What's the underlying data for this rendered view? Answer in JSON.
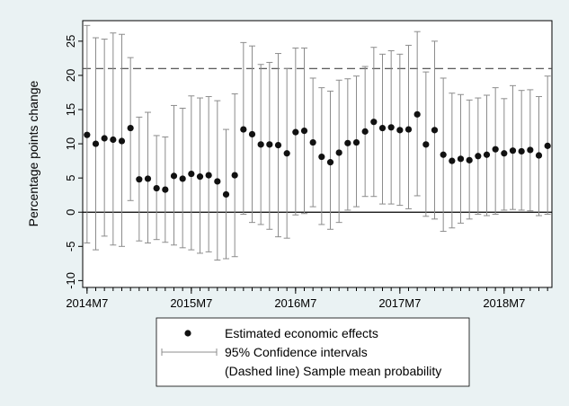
{
  "chart_data": {
    "type": "scatter",
    "title": "",
    "xlabel": "",
    "ylabel": "Percentage points change",
    "ylim": [
      -11,
      28
    ],
    "yticks": [
      -10,
      -5,
      0,
      5,
      10,
      15,
      20,
      25
    ],
    "xlim": [
      0.5,
      54.5
    ],
    "xtick_labels": [
      {
        "x": 1,
        "label": "2014M7"
      },
      {
        "x": 13,
        "label": "2015M7"
      },
      {
        "x": 25,
        "label": "2016M7"
      },
      {
        "x": 37,
        "label": "2017M7"
      },
      {
        "x": 49,
        "label": "2018M7"
      }
    ],
    "x_minor_ticks_every": 1,
    "zero_line": 0,
    "reference_line": {
      "y": 21,
      "style": "dashed",
      "label": "(Dashed line) Sample mean probability"
    },
    "grid": false,
    "colors": {
      "background": "#eaf2f3",
      "plot_area": "#ffffff",
      "points": "#111111",
      "ci": "#8c8c8c",
      "dashed": "#444444"
    },
    "series": [
      {
        "name": "Estimated economic effects",
        "x": [
          1,
          2,
          3,
          4,
          5,
          6,
          7,
          8,
          9,
          10,
          11,
          12,
          13,
          14,
          15,
          16,
          17,
          18,
          19,
          20,
          21,
          22,
          23,
          24,
          25,
          26,
          27,
          28,
          29,
          30,
          31,
          32,
          33,
          34,
          35,
          36,
          37,
          38,
          39,
          40,
          41,
          42,
          43,
          44,
          45,
          46,
          47,
          48,
          49,
          50,
          51,
          52,
          53,
          54
        ],
        "y": [
          11.3,
          10,
          10.8,
          10.6,
          10.4,
          12.3,
          4.8,
          4.9,
          3.5,
          3.3,
          5.3,
          4.9,
          5.6,
          5.2,
          5.4,
          4.5,
          2.6,
          5.4,
          12.1,
          11.4,
          9.9,
          9.9,
          9.8,
          8.6,
          11.7,
          11.9,
          10.2,
          8.1,
          7.3,
          8.7,
          10.1,
          10.2,
          11.8,
          13.2,
          12.3,
          12.4,
          12,
          12.1,
          14.3,
          9.9,
          12,
          8.4,
          7.5,
          7.8,
          7.6,
          8.2,
          8.4,
          9.2,
          8.6,
          9,
          8.9,
          9.1,
          8.3,
          9.7
        ]
      },
      {
        "name": "95% Confidence intervals",
        "lower": [
          -4.5,
          -5.5,
          -3.5,
          -4.8,
          -5,
          1.7,
          -4.2,
          -4.5,
          -4,
          -4.4,
          -4.8,
          -5.2,
          -5.5,
          -6,
          -5.8,
          -7,
          -6.8,
          -6.5,
          -0.3,
          -1.5,
          -1.8,
          -2.5,
          -3.6,
          -3.8,
          -0.4,
          -0.2,
          0.8,
          -1.8,
          -2.5,
          -1.5,
          0.3,
          0.8,
          2.3,
          2.3,
          1.2,
          1.2,
          1,
          0.5,
          2.4,
          -0.6,
          -1,
          -2.8,
          -2.3,
          -1.6,
          -1,
          -0.3,
          -0.5,
          -0.3,
          0.3,
          0.4,
          0.3,
          0.2,
          -0.5,
          -0.3
        ],
        "upper": [
          27.3,
          25.5,
          25.3,
          26.2,
          26,
          22.6,
          13.9,
          14.6,
          11.2,
          11,
          15.6,
          15.2,
          17,
          16.7,
          16.9,
          16.3,
          12.1,
          17.3,
          24.8,
          24.3,
          21.6,
          21.9,
          23.2,
          21,
          24,
          24,
          19.6,
          18.2,
          17.7,
          19.3,
          19.5,
          19.9,
          21.3,
          24.1,
          23.1,
          23.6,
          23.1,
          24.4,
          26.4,
          20.5,
          25,
          19.6,
          17.4,
          17.2,
          16.4,
          16.7,
          17.1,
          18.2,
          16.6,
          18.5,
          17.8,
          17.9,
          16.9,
          19.9
        ]
      }
    ],
    "legend": {
      "placement": "bottom",
      "entries": [
        "Estimated economic effects",
        "95% Confidence intervals",
        "(Dashed line) Sample mean probability"
      ]
    }
  }
}
